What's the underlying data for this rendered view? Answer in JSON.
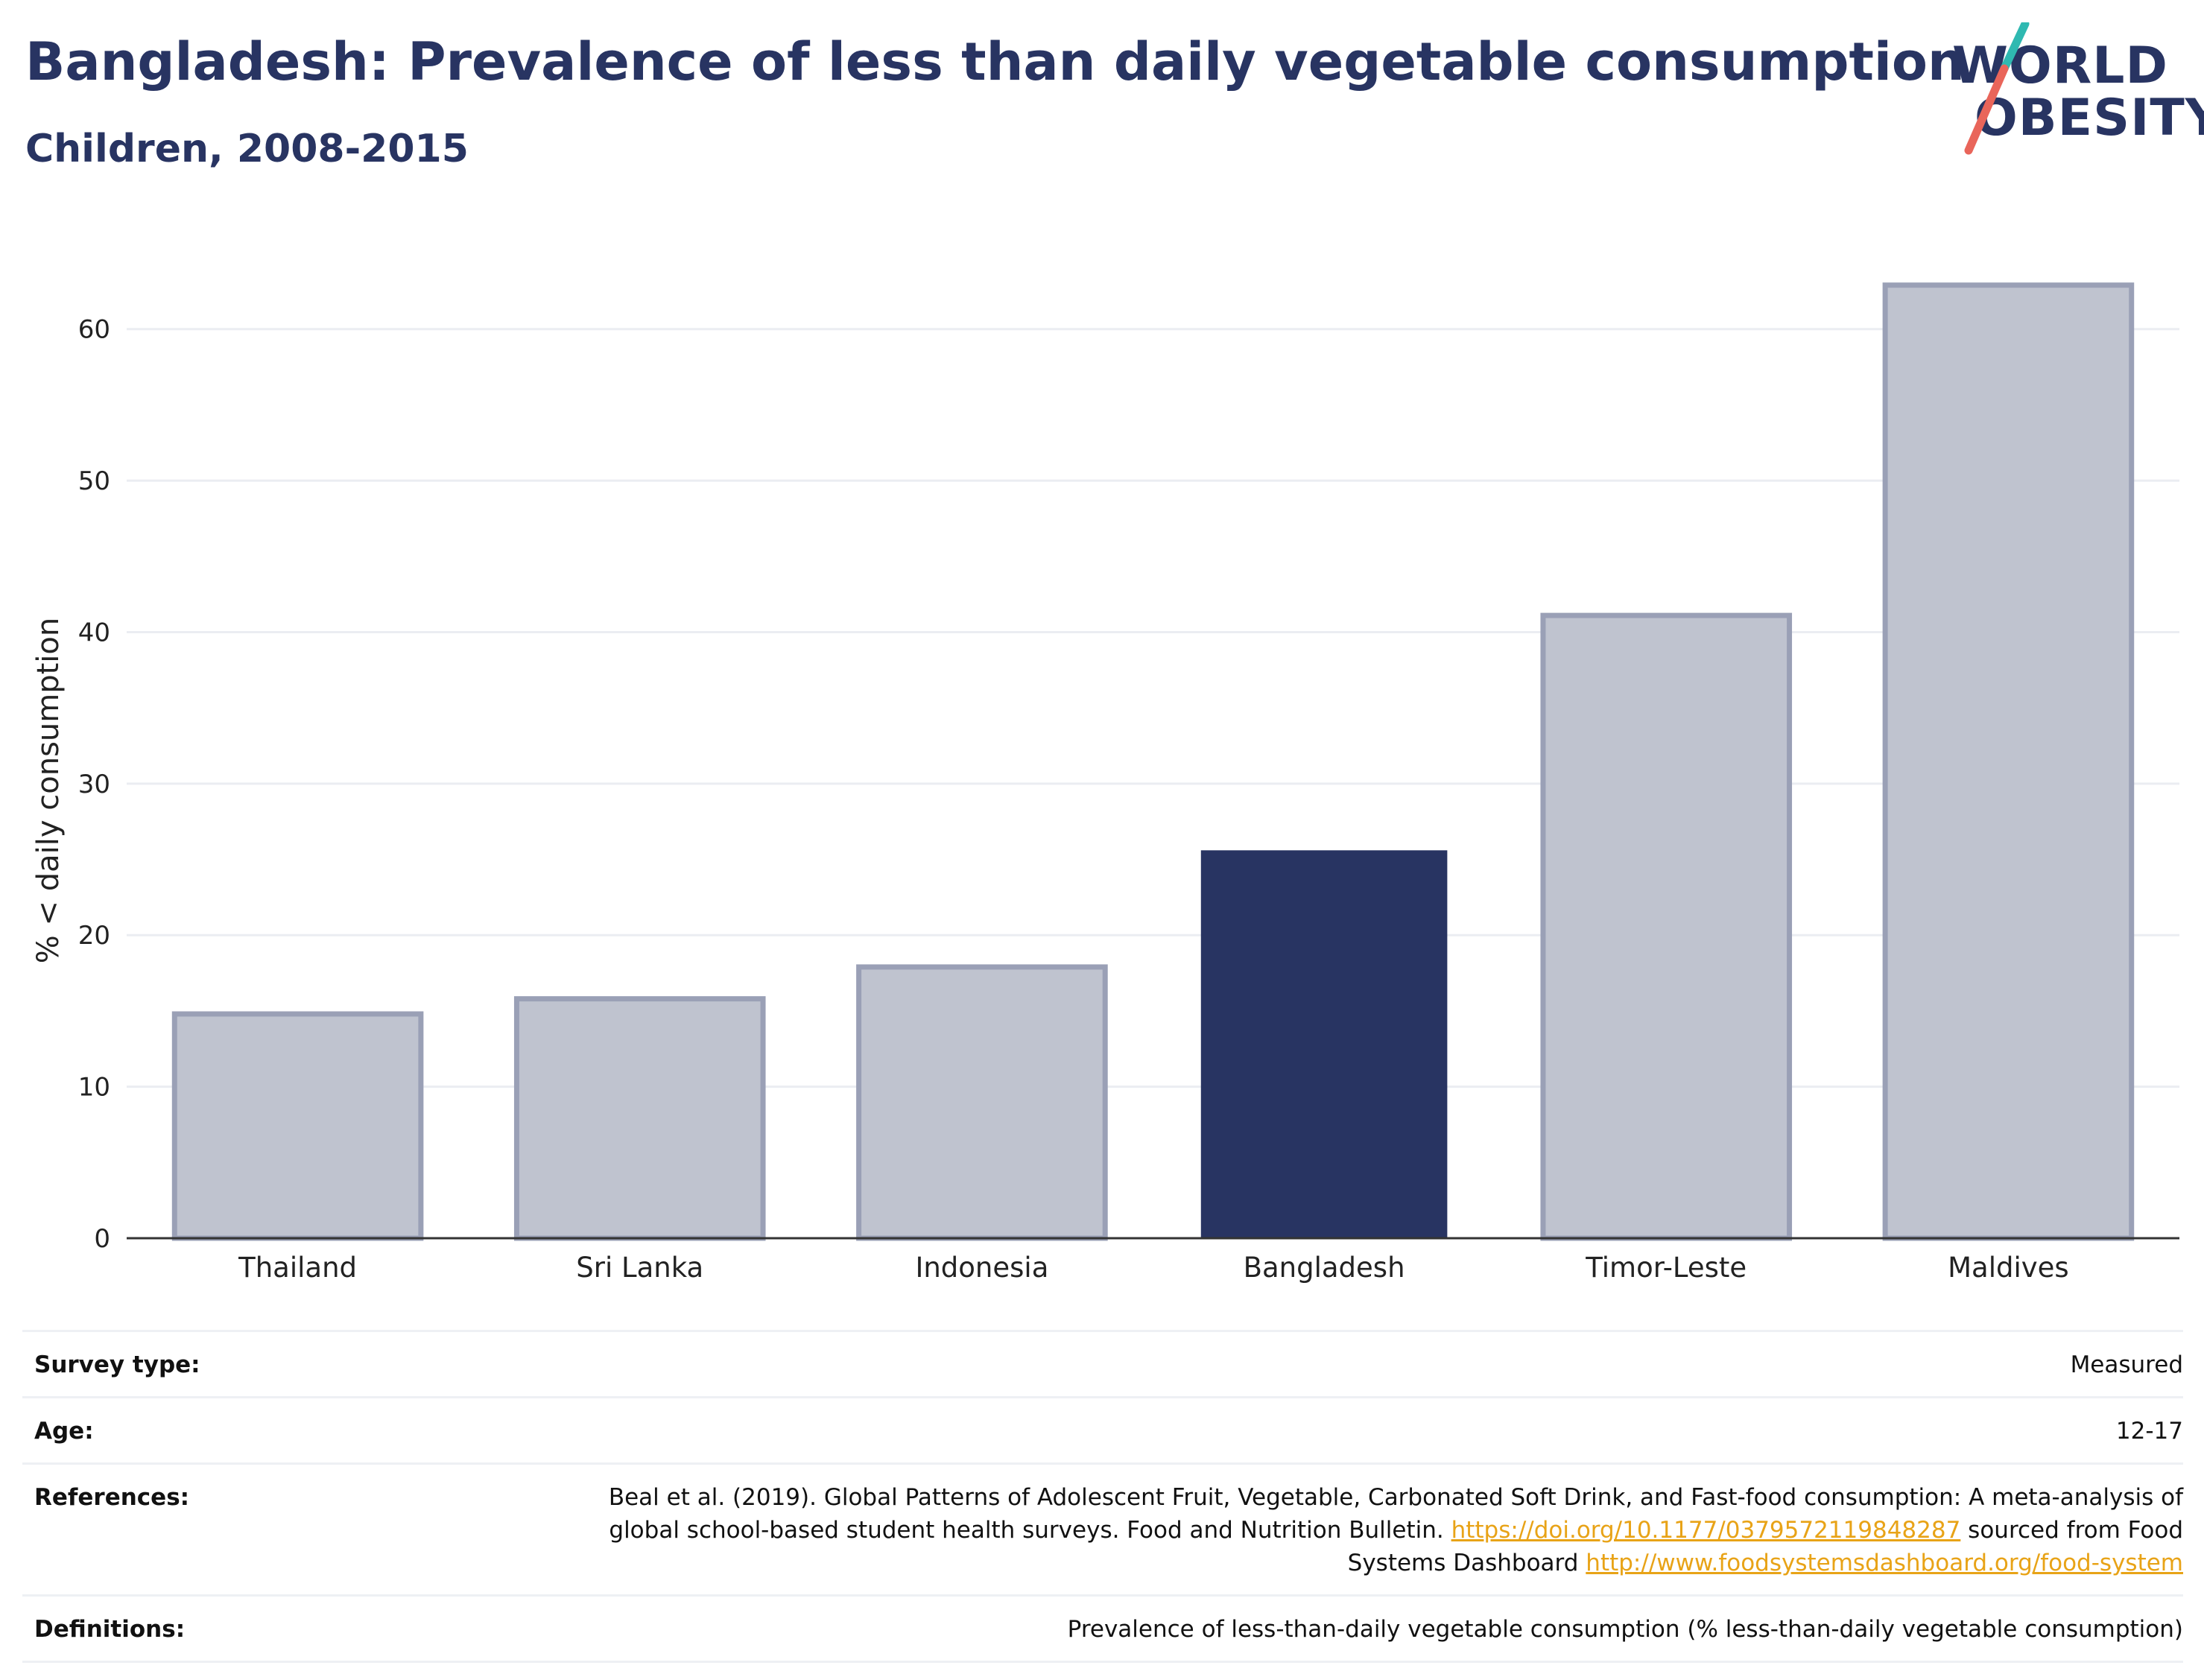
{
  "header": {
    "title": "Bangladesh: Prevalence of less than daily vegetable consumption",
    "subtitle": "Children, 2008-2015"
  },
  "logo": {
    "line1": "WORLD",
    "line2": "OBESITY",
    "accent_colors": [
      "#2fb9b1",
      "#e9655a"
    ]
  },
  "chart_data": {
    "type": "bar",
    "categories": [
      "Thailand",
      "Sri Lanka",
      "Indonesia",
      "Bangladesh",
      "Timor-Leste",
      "Maldives"
    ],
    "values": [
      14.8,
      15.8,
      17.9,
      25.6,
      41.1,
      62.9
    ],
    "highlight": "Bangladesh",
    "title": "",
    "xlabel": "",
    "ylabel": "% < daily consumption",
    "ylim": [
      0,
      65
    ],
    "yticks": [
      0,
      10,
      20,
      30,
      40,
      50,
      60
    ],
    "grid": true,
    "colors": {
      "highlight": "#283462",
      "default_fill": "#bfc3cf",
      "default_stroke": "#9aa0b6"
    }
  },
  "meta": {
    "survey_type_label": "Survey type:",
    "survey_type_value": "Measured",
    "age_label": "Age:",
    "age_value": "12-17",
    "references_label": "References:",
    "references_text_1": "Beal et al. (2019). Global Patterns of Adolescent Fruit, Vegetable, Carbonated Soft Drink, and Fast-food consumption: A meta-analysis of global school-based student health surveys. Food and Nutrition Bulletin. ",
    "references_link_1": "https://doi.org/10.1177/0379572119848287",
    "references_text_2": " sourced from Food Systems Dashboard ",
    "references_link_2": "http://www.foodsystemsdashboard.org/food-system",
    "definitions_label": "Definitions:",
    "definitions_value": "Prevalence of less-than-daily vegetable consumption (% less-than-daily vegetable consumption)"
  }
}
